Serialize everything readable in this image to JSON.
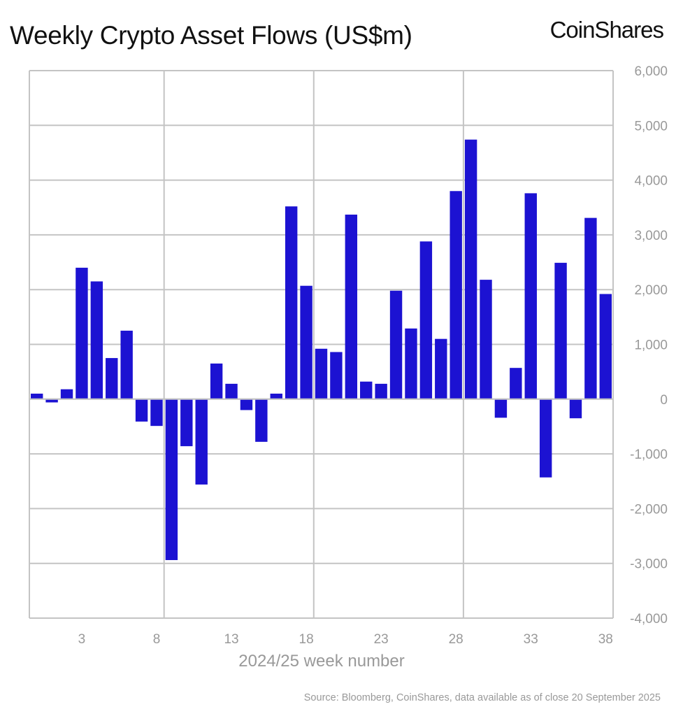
{
  "chart_data": {
    "type": "bar",
    "title": "Weekly Crypto Asset Flows (US$m)",
    "brand": "CoinShares",
    "xlabel": "2024/25 week number",
    "ylabel": "",
    "source": "Source: Bloomberg, CoinShares, data available as of close 20 September 2025",
    "categories": [
      0,
      1,
      2,
      3,
      4,
      5,
      6,
      7,
      8,
      9,
      10,
      11,
      12,
      13,
      14,
      15,
      16,
      17,
      18,
      19,
      20,
      21,
      22,
      23,
      24,
      25,
      26,
      27,
      28,
      29,
      30,
      31,
      32,
      33,
      34,
      35,
      36,
      37,
      38
    ],
    "values": [
      100,
      -60,
      180,
      2400,
      2150,
      750,
      1250,
      -410,
      -490,
      -2940,
      -860,
      -1560,
      650,
      280,
      -200,
      -780,
      100,
      3520,
      2070,
      920,
      860,
      3370,
      320,
      280,
      1980,
      1290,
      2880,
      1100,
      3800,
      4740,
      2180,
      -340,
      570,
      3760,
      -1430,
      2490,
      -350,
      3310,
      1920
    ],
    "x_tick_labels": [
      "3",
      "8",
      "13",
      "18",
      "23",
      "28",
      "33",
      "38"
    ],
    "y_tick_labels": [
      "6,000",
      "5,000",
      "4,000",
      "3,000",
      "2,000",
      "1,000",
      "0",
      "-1,000",
      "-2,000",
      "-3,000",
      "-4,000"
    ],
    "ylim": [
      -4000,
      6000
    ],
    "y_axis_position": "right",
    "grid": true,
    "bar_color": "#1c12d2",
    "grid_color": "#c4c4c4"
  }
}
